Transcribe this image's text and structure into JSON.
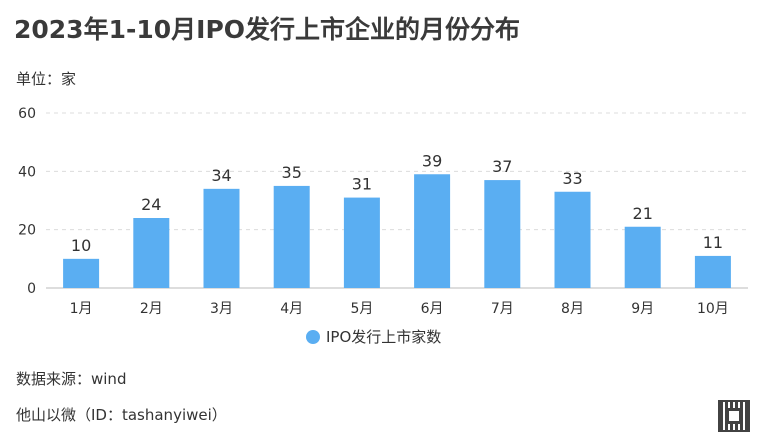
{
  "title": "2023年1-10月IPO发行上市企业的月份分布",
  "unit_label": "单位：家",
  "source_label": "数据来源：wind",
  "account_label": "他山以微（ID：tashanyiwei）",
  "colors": {
    "bar": "#5aaef2",
    "grid": "#dcdcdc",
    "axis": "#bbbbbb",
    "text": "#333333"
  },
  "chart_data": {
    "type": "bar",
    "categories": [
      "1月",
      "2月",
      "3月",
      "4月",
      "5月",
      "6月",
      "7月",
      "8月",
      "9月",
      "10月"
    ],
    "series": [
      {
        "name": "IPO发行上市家数",
        "values": [
          10,
          24,
          34,
          35,
          31,
          39,
          37,
          33,
          21,
          11
        ]
      }
    ],
    "yticks": [
      "0",
      "20",
      "40",
      "60"
    ],
    "ylim": [
      0,
      60
    ],
    "grid": true,
    "legend_position": "bottom-center",
    "data_labels": true
  }
}
